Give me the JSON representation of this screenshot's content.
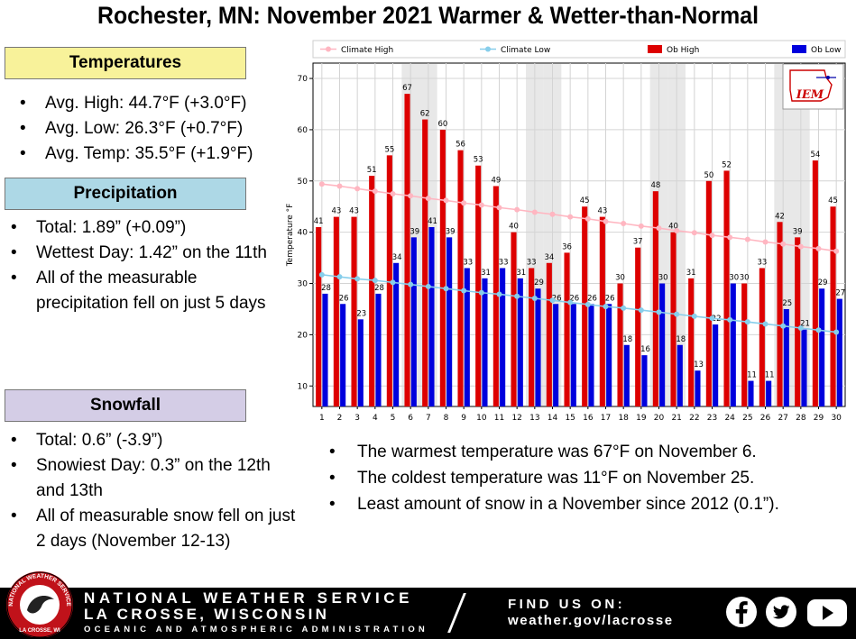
{
  "title": "Rochester, MN:  November  2021 Warmer & Wetter-than-Normal",
  "temperatures": {
    "heading": "Temperatures",
    "items": [
      "Avg. High:  44.7°F (+3.0°F)",
      "Avg. Low:  26.3°F (+0.7°F)",
      "Avg. Temp:  35.5°F (+1.9°F)"
    ]
  },
  "precipitation": {
    "heading": "Precipitation",
    "items": [
      "Total:  1.89” (+0.09”)",
      "Wettest Day: 1.42” on the 11th",
      "All of the measurable precipitation fell on just 5 days"
    ]
  },
  "snowfall": {
    "heading": "Snowfall",
    "items": [
      "Total:  0.6” (-3.9”)",
      "Snowiest Day: 0.3” on the 12th and 13th",
      "All of measurable snow fell on just 2 days  (November 12-13)"
    ]
  },
  "notes": [
    "The warmest temperature was 67°F on November 6.",
    "The coldest temperature was 11°F on November 25.",
    "Least amount of snow in a November since 2012 (0.1”)."
  ],
  "chart_data": {
    "type": "bar",
    "ylabel": "Temperature °F",
    "xlabel": "",
    "ylim": [
      6,
      73
    ],
    "yticks": [
      10,
      20,
      30,
      40,
      50,
      60,
      70
    ],
    "categories": [
      "1",
      "2",
      "3",
      "4",
      "5",
      "6",
      "7",
      "8",
      "9",
      "10",
      "11",
      "12",
      "13",
      "14",
      "15",
      "16",
      "17",
      "18",
      "19",
      "20",
      "21",
      "22",
      "23",
      "24",
      "25",
      "26",
      "27",
      "28",
      "29",
      "30"
    ],
    "series": [
      {
        "name": "Ob High",
        "kind": "bar",
        "color": "#dd0000",
        "values": [
          41,
          43,
          43,
          51,
          55,
          67,
          62,
          60,
          56,
          53,
          49,
          40,
          33,
          34,
          36,
          45,
          43,
          30,
          37,
          48,
          40,
          31,
          50,
          52,
          30,
          33,
          42,
          39,
          54,
          45
        ]
      },
      {
        "name": "Ob Low",
        "kind": "bar",
        "color": "#0000dd",
        "values": [
          28,
          26,
          23,
          28,
          34,
          39,
          41,
          39,
          33,
          31,
          33,
          31,
          29,
          26,
          26,
          26,
          26,
          18,
          16,
          30,
          18,
          13,
          22,
          30,
          11,
          11,
          25,
          21,
          29,
          27
        ]
      },
      {
        "name": "Climate High",
        "kind": "line",
        "color": "#ffb6c1",
        "values": [
          49.4,
          49.0,
          48.5,
          48.0,
          47.5,
          47.1,
          46.6,
          46.2,
          45.7,
          45.3,
          44.8,
          44.4,
          43.9,
          43.5,
          43.0,
          42.6,
          42.1,
          41.7,
          41.2,
          40.8,
          40.3,
          39.9,
          39.4,
          39.0,
          38.6,
          38.1,
          37.7,
          37.2,
          36.8,
          36.3
        ]
      },
      {
        "name": "Climate Low",
        "kind": "line",
        "color": "#87ceeb",
        "values": [
          31.7,
          31.3,
          30.9,
          30.6,
          30.2,
          29.8,
          29.4,
          29.0,
          28.6,
          28.2,
          27.9,
          27.5,
          27.1,
          26.7,
          26.3,
          25.9,
          25.5,
          25.2,
          24.8,
          24.4,
          24.0,
          23.6,
          23.2,
          22.9,
          22.5,
          22.1,
          21.7,
          21.3,
          20.9,
          20.5
        ]
      }
    ],
    "shaded_days": [
      6,
      7,
      13,
      14,
      20,
      21,
      27,
      28
    ],
    "legend_position": "top",
    "watermark": "IEM",
    "grid": true
  },
  "footer": {
    "line1": "NATIONAL WEATHER SERVICE",
    "line2": "LA CROSSE, WISCONSIN",
    "line3": "OCEANIC AND ATMOSPHERIC ADMINISTRATION",
    "find_label": "FIND US ON:",
    "url": "weather.gov/lacrosse",
    "social_icons": [
      "facebook-icon",
      "twitter-icon",
      "youtube-icon"
    ],
    "logo_text": "NATIONAL WEATHER SERVICE",
    "logo_subtext": "LA CROSSE, WI"
  }
}
